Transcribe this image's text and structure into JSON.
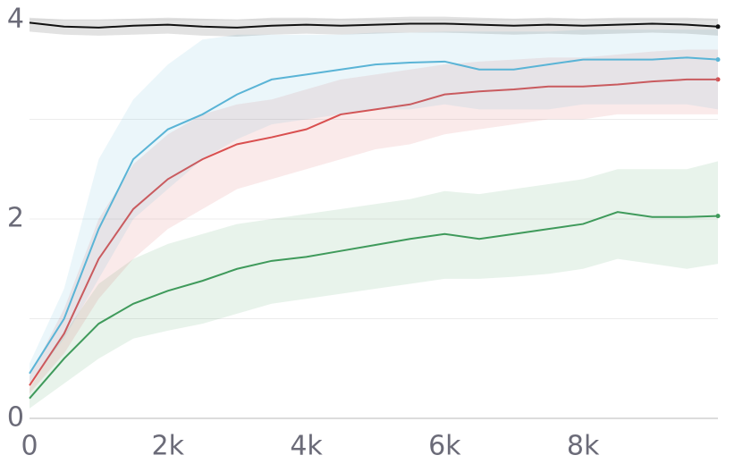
{
  "chart_data": {
    "type": "line",
    "x": [
      0,
      500,
      1000,
      1500,
      2000,
      2500,
      3000,
      3500,
      4000,
      4500,
      5000,
      5500,
      6000,
      6500,
      7000,
      7500,
      8000,
      8500,
      9000,
      9500,
      9950
    ],
    "xlim": [
      0,
      9950
    ],
    "xticks": [
      0,
      {
        "value": 2000,
        "label": "2k"
      },
      {
        "value": 4000,
        "label": "4k"
      },
      {
        "value": 6000,
        "label": "6k"
      },
      {
        "value": 8000,
        "label": "8k"
      }
    ],
    "ylim": [
      0,
      4
    ],
    "yticks": [
      0,
      2,
      4
    ],
    "minor_yticks": [
      1,
      3
    ],
    "grid": true,
    "series": [
      {
        "color": "#111111",
        "values": [
          3.97,
          3.93,
          3.92,
          3.94,
          3.95,
          3.93,
          3.92,
          3.94,
          3.95,
          3.94,
          3.95,
          3.96,
          3.96,
          3.95,
          3.94,
          3.95,
          3.94,
          3.95,
          3.96,
          3.95,
          3.93
        ],
        "lower": [
          3.88,
          3.85,
          3.84,
          3.85,
          3.86,
          3.84,
          3.83,
          3.85,
          3.86,
          3.85,
          3.86,
          3.87,
          3.87,
          3.86,
          3.85,
          3.86,
          3.85,
          3.86,
          3.87,
          3.86,
          3.84
        ],
        "upper": [
          4.02,
          4.0,
          4.0,
          4.01,
          4.02,
          4.01,
          4.0,
          4.02,
          4.02,
          4.01,
          4.02,
          4.03,
          4.03,
          4.02,
          4.01,
          4.02,
          4.01,
          4.02,
          4.02,
          4.02,
          4.01
        ]
      },
      {
        "color": "#5ab4d6",
        "values": [
          0.45,
          1.0,
          1.9,
          2.6,
          2.9,
          3.05,
          3.25,
          3.4,
          3.45,
          3.5,
          3.55,
          3.57,
          3.58,
          3.5,
          3.5,
          3.55,
          3.6,
          3.6,
          3.6,
          3.62,
          3.6
        ],
        "lower": [
          0.35,
          0.8,
          1.4,
          2.0,
          2.3,
          2.6,
          2.8,
          2.95,
          3.0,
          3.05,
          3.1,
          3.1,
          3.15,
          3.1,
          3.1,
          3.1,
          3.15,
          3.15,
          3.15,
          3.15,
          3.1
        ],
        "upper": [
          0.55,
          1.3,
          2.6,
          3.2,
          3.55,
          3.8,
          3.85,
          3.85,
          3.85,
          3.85,
          3.87,
          3.87,
          3.88,
          3.88,
          3.88,
          3.88,
          3.9,
          3.9,
          3.9,
          3.9,
          3.9
        ]
      },
      {
        "color": "#d94f4f",
        "values": [
          0.33,
          0.85,
          1.6,
          2.1,
          2.4,
          2.6,
          2.75,
          2.82,
          2.9,
          3.05,
          3.1,
          3.15,
          3.25,
          3.28,
          3.3,
          3.33,
          3.33,
          3.35,
          3.38,
          3.4,
          3.4
        ],
        "lower": [
          0.25,
          0.65,
          1.2,
          1.6,
          1.9,
          2.1,
          2.3,
          2.4,
          2.5,
          2.6,
          2.7,
          2.75,
          2.85,
          2.9,
          2.95,
          3.0,
          3.0,
          3.05,
          3.05,
          3.05,
          3.05
        ],
        "upper": [
          0.42,
          1.1,
          2.0,
          2.55,
          2.85,
          3.05,
          3.15,
          3.2,
          3.3,
          3.4,
          3.45,
          3.5,
          3.55,
          3.58,
          3.6,
          3.62,
          3.62,
          3.65,
          3.68,
          3.7,
          3.7
        ]
      },
      {
        "color": "#3f9a5b",
        "values": [
          0.2,
          0.6,
          0.95,
          1.15,
          1.28,
          1.38,
          1.5,
          1.58,
          1.62,
          1.68,
          1.74,
          1.8,
          1.85,
          1.8,
          1.85,
          1.9,
          1.95,
          2.07,
          2.02,
          2.02,
          2.03
        ],
        "lower": [
          0.1,
          0.35,
          0.6,
          0.8,
          0.88,
          0.95,
          1.05,
          1.15,
          1.2,
          1.25,
          1.3,
          1.35,
          1.4,
          1.4,
          1.42,
          1.45,
          1.5,
          1.6,
          1.55,
          1.5,
          1.55
        ],
        "upper": [
          0.3,
          0.85,
          1.35,
          1.6,
          1.75,
          1.85,
          1.95,
          2.0,
          2.05,
          2.1,
          2.15,
          2.2,
          2.28,
          2.25,
          2.3,
          2.35,
          2.4,
          2.5,
          2.5,
          2.5,
          2.58
        ]
      }
    ]
  }
}
